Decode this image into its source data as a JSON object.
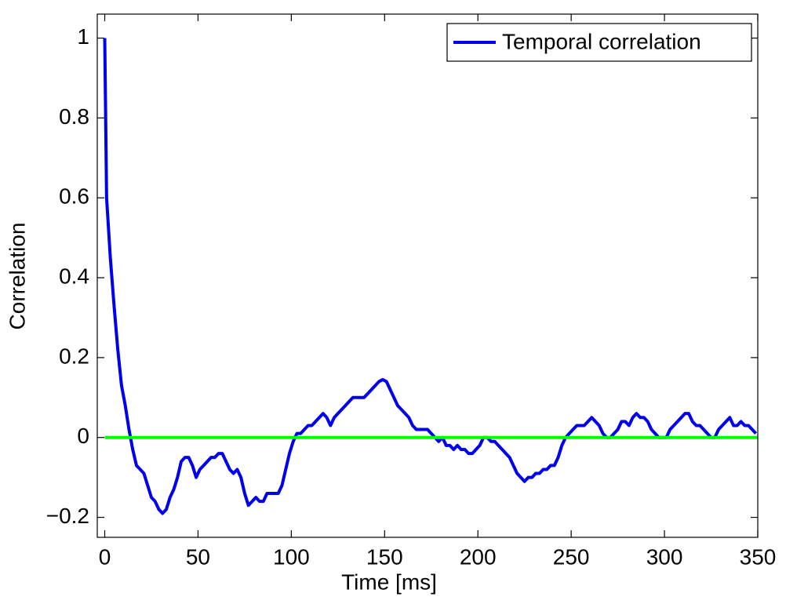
{
  "chart_data": {
    "type": "line",
    "xlabel": "Time [ms]",
    "ylabel": "Correlation",
    "xlim": [
      -4,
      350
    ],
    "ylim": [
      -0.25,
      1.06
    ],
    "xticks": [
      0,
      50,
      100,
      150,
      200,
      250,
      300,
      350
    ],
    "yticks": [
      {
        "value": -0.2,
        "label": "−0.2"
      },
      0,
      0.2,
      0.4,
      0.6,
      0.8,
      1
    ],
    "legend": "upper right",
    "series": [
      {
        "name": "Temporal correlation",
        "color": "#0000ee",
        "x": [
          0,
          1,
          3,
          5,
          7,
          9,
          11,
          13,
          15,
          17,
          19,
          21,
          23,
          25,
          27,
          29,
          31,
          33,
          35,
          37,
          39,
          41,
          43,
          45,
          47,
          49,
          51,
          53,
          55,
          57,
          59,
          61,
          63,
          65,
          67,
          69,
          71,
          73,
          75,
          77,
          79,
          81,
          83,
          85,
          87,
          89,
          91,
          93,
          95,
          97,
          99,
          101,
          103,
          105,
          107,
          109,
          111,
          113,
          115,
          117,
          119,
          121,
          123,
          125,
          127,
          129,
          131,
          133,
          135,
          137,
          139,
          141,
          143,
          145,
          147,
          149,
          151,
          153,
          155,
          157,
          159,
          161,
          163,
          165,
          167,
          169,
          171,
          173,
          175,
          177,
          179,
          181,
          183,
          185,
          187,
          189,
          191,
          193,
          195,
          197,
          199,
          201,
          203,
          205,
          207,
          209,
          211,
          213,
          215,
          217,
          219,
          221,
          223,
          225,
          227,
          229,
          231,
          233,
          235,
          237,
          239,
          241,
          243,
          245,
          247,
          249,
          251,
          253,
          255,
          257,
          259,
          261,
          263,
          265,
          267,
          269,
          271,
          273,
          275,
          277,
          279,
          281,
          283,
          285,
          287,
          289,
          291,
          293,
          295,
          297,
          299,
          301,
          303,
          305,
          307,
          309,
          311,
          313,
          315,
          317,
          319,
          321,
          323,
          325,
          327,
          329,
          331,
          333,
          335,
          337,
          339,
          341,
          343,
          345,
          347,
          349
        ],
        "values": [
          1,
          0.6,
          0.45,
          0.33,
          0.22,
          0.13,
          0.08,
          0.02,
          -0.03,
          -0.07,
          -0.08,
          -0.09,
          -0.12,
          -0.15,
          -0.16,
          -0.18,
          -0.19,
          -0.18,
          -0.15,
          -0.13,
          -0.1,
          -0.06,
          -0.05,
          -0.05,
          -0.07,
          -0.1,
          -0.08,
          -0.07,
          -0.06,
          -0.05,
          -0.05,
          -0.04,
          -0.04,
          -0.06,
          -0.08,
          -0.09,
          -0.08,
          -0.1,
          -0.14,
          -0.17,
          -0.16,
          -0.15,
          -0.16,
          -0.16,
          -0.14,
          -0.14,
          -0.14,
          -0.14,
          -0.12,
          -0.08,
          -0.04,
          -0.01,
          0.01,
          0.01,
          0.02,
          0.03,
          0.03,
          0.04,
          0.05,
          0.06,
          0.05,
          0.03,
          0.05,
          0.06,
          0.07,
          0.08,
          0.09,
          0.1,
          0.1,
          0.1,
          0.1,
          0.11,
          0.12,
          0.13,
          0.14,
          0.145,
          0.14,
          0.12,
          0.1,
          0.08,
          0.07,
          0.06,
          0.05,
          0.03,
          0.02,
          0.02,
          0.02,
          0.02,
          0.01,
          0,
          -0.01,
          0,
          -0.02,
          -0.02,
          -0.03,
          -0.02,
          -0.03,
          -0.03,
          -0.04,
          -0.04,
          -0.03,
          -0.02,
          0,
          0,
          -0.01,
          -0.01,
          -0.02,
          -0.03,
          -0.04,
          -0.05,
          -0.07,
          -0.09,
          -0.1,
          -0.11,
          -0.1,
          -0.1,
          -0.09,
          -0.09,
          -0.08,
          -0.08,
          -0.07,
          -0.07,
          -0.05,
          -0.02,
          0,
          0.01,
          0.02,
          0.03,
          0.03,
          0.03,
          0.04,
          0.05,
          0.04,
          0.03,
          0.01,
          0,
          0,
          0.01,
          0.02,
          0.04,
          0.04,
          0.03,
          0.05,
          0.06,
          0.05,
          0.05,
          0.04,
          0.02,
          0.01,
          0,
          0,
          0,
          0.02,
          0.03,
          0.04,
          0.05,
          0.06,
          0.06,
          0.04,
          0.03,
          0.03,
          0.02,
          0.01,
          0,
          0,
          0.02,
          0.03,
          0.04,
          0.05,
          0.03,
          0.03,
          0.04,
          0.03,
          0.03,
          0.02,
          0.01
        ]
      },
      {
        "color": "#00ff00",
        "x": [
          0,
          350
        ],
        "values": [
          0,
          0
        ]
      }
    ]
  }
}
